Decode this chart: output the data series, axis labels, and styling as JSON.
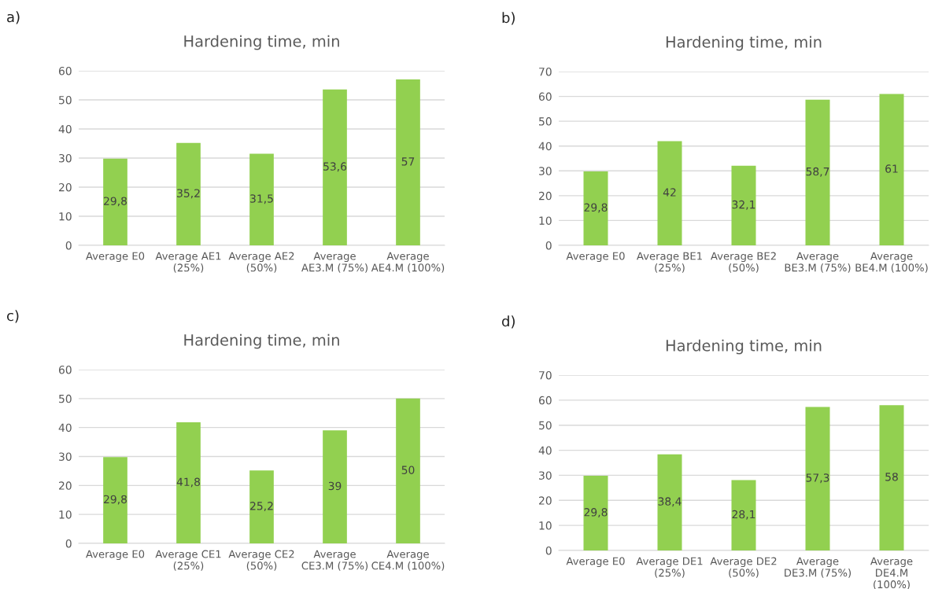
{
  "chart_data": [
    {
      "type": "bar",
      "title": "Hardening time, min",
      "annotations": [
        "a)"
      ],
      "categories": [
        "Average E0",
        "Average AE1\n(25%)",
        "Average AE2\n(50%)",
        "Average\nAE3.M (75%)",
        "Average\nAE4.M (100%)"
      ],
      "values": [
        29.8,
        35.2,
        31.5,
        53.6,
        57
      ],
      "value_labels": [
        "29,8",
        "35,2",
        "31,5",
        "53,6",
        "57"
      ],
      "color": "#92d050",
      "ylim": [
        0,
        60
      ],
      "yticks": [
        0,
        10,
        20,
        30,
        40,
        50,
        60
      ],
      "grid": "y"
    },
    {
      "type": "bar",
      "title": "Hardening time, min",
      "annotations": [
        "b)"
      ],
      "categories": [
        "Average E0",
        "Average BE1\n(25%)",
        "Average BE2\n(50%)",
        "Average\nBE3.M (75%)",
        "Average\nBE4.M (100%)"
      ],
      "values": [
        29.8,
        42,
        32.1,
        58.7,
        61
      ],
      "value_labels": [
        "29,8",
        "42",
        "32,1",
        "58,7",
        "61"
      ],
      "color": "#92d050",
      "ylim": [
        0,
        70
      ],
      "yticks": [
        0,
        10,
        20,
        30,
        40,
        50,
        60,
        70
      ],
      "grid": "y"
    },
    {
      "type": "bar",
      "title": "Hardening time, min",
      "annotations": [
        "c)"
      ],
      "categories": [
        "Average E0",
        "Average CE1\n(25%)",
        "Average CE2\n(50%)",
        "Average\nCE3.M (75%)",
        "Average\nCE4.M (100%)"
      ],
      "values": [
        29.8,
        41.8,
        25.2,
        39,
        50
      ],
      "value_labels": [
        "29,8",
        "41,8",
        "25,2",
        "39",
        "50"
      ],
      "color": "#92d050",
      "ylim": [
        0,
        60
      ],
      "yticks": [
        0,
        10,
        20,
        30,
        40,
        50,
        60
      ],
      "grid": "y"
    },
    {
      "type": "bar",
      "title": "Hardening time, min",
      "annotations": [
        "d)"
      ],
      "categories": [
        "Average E0",
        "Average DE1\n(25%)",
        "Average DE2\n(50%)",
        "Average\nDE3.M (75%)",
        "Average\nDE4.M\n(100%)"
      ],
      "values": [
        29.8,
        38.4,
        28.1,
        57.3,
        58
      ],
      "value_labels": [
        "29,8",
        "38,4",
        "28,1",
        "57,3",
        "58"
      ],
      "color": "#92d050",
      "ylim": [
        0,
        70
      ],
      "yticks": [
        0,
        10,
        20,
        30,
        40,
        50,
        60,
        70
      ],
      "grid": "y"
    }
  ]
}
